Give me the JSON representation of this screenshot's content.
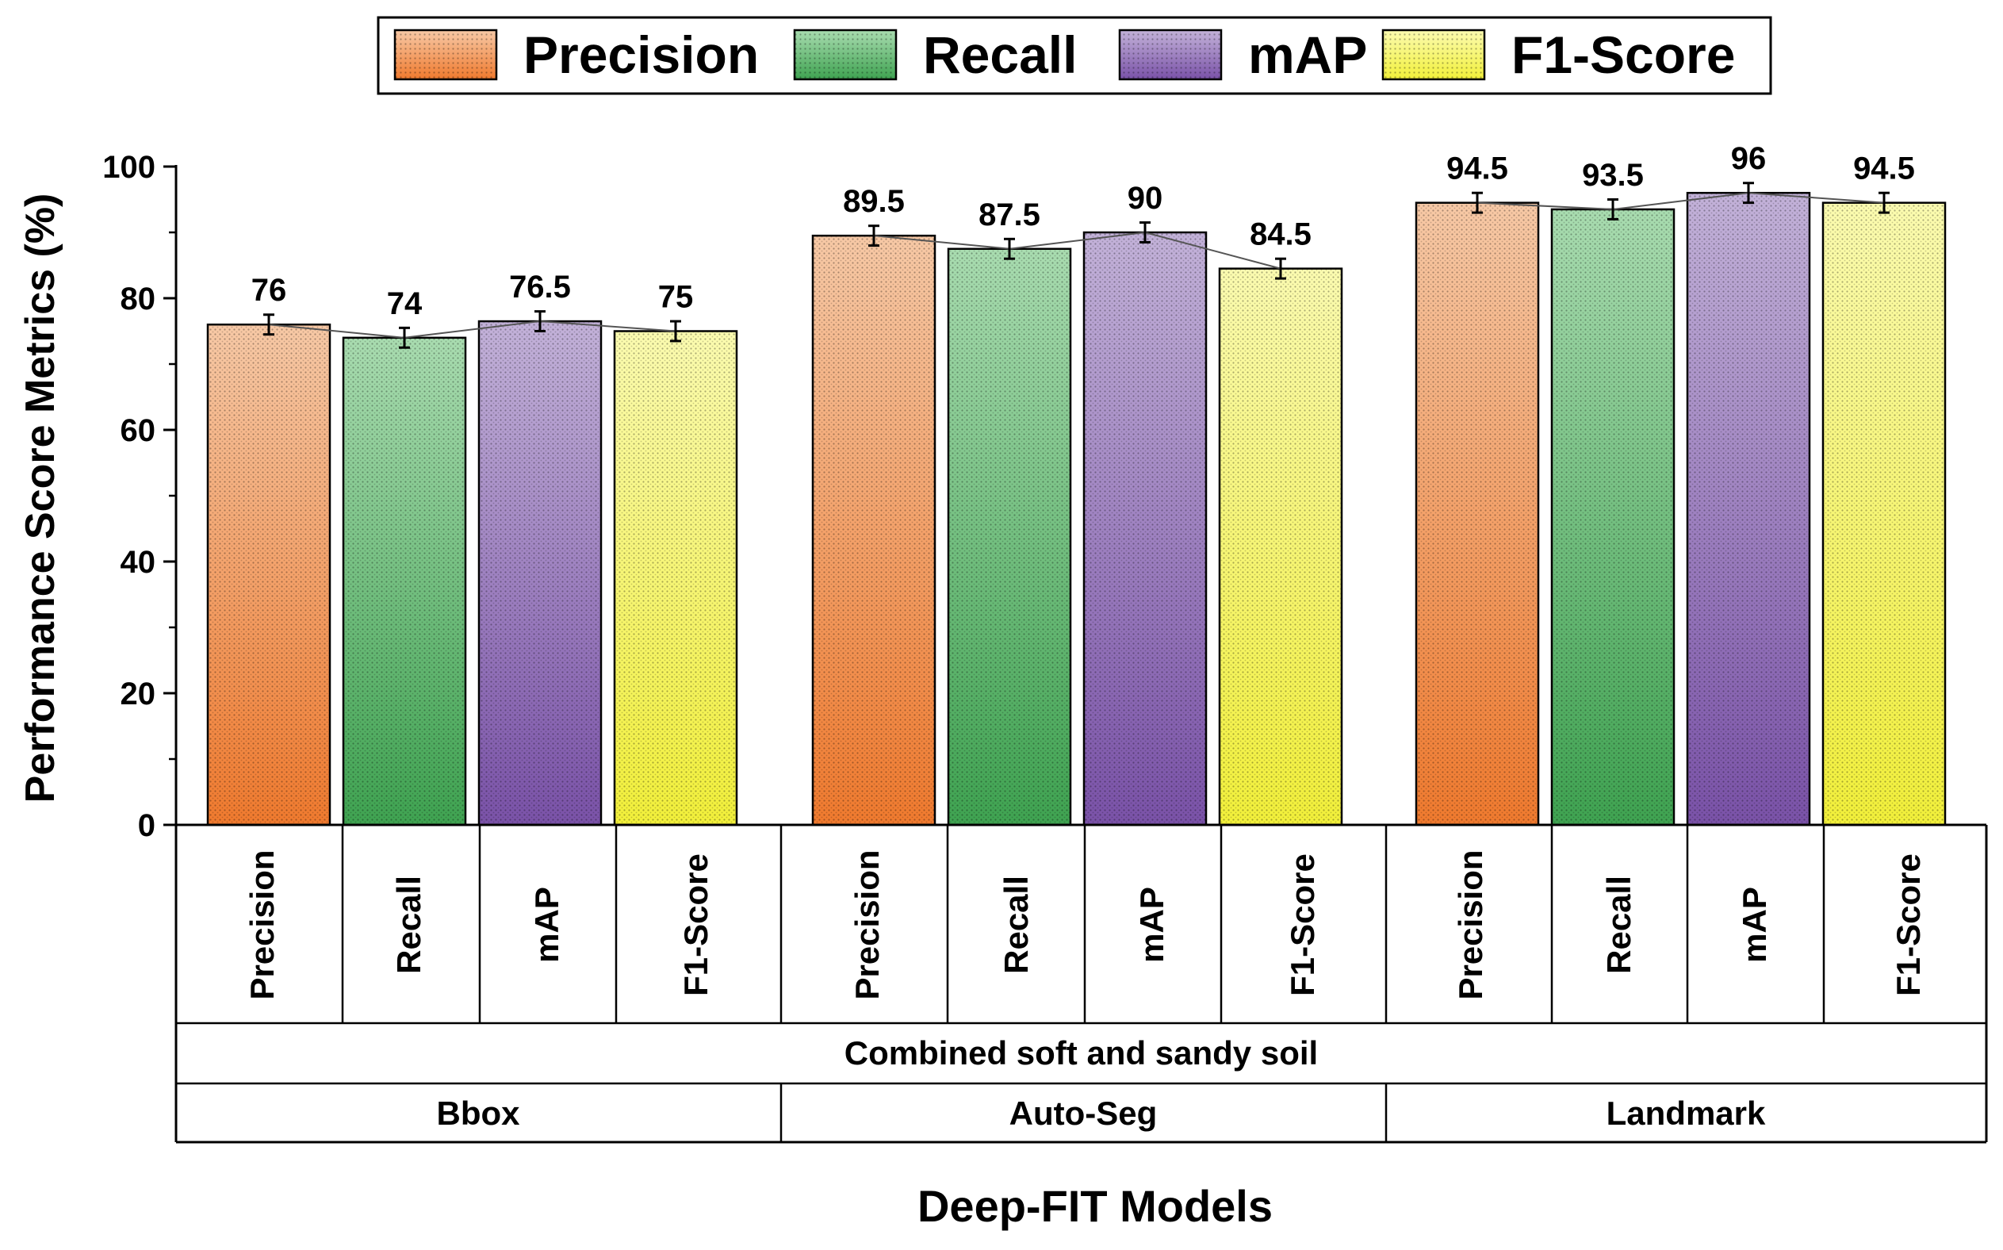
{
  "chart_data": {
    "type": "bar",
    "xlabel": "Deep-FIT Models",
    "ylabel": "Performance Score Metrics (%)",
    "ylim": [
      0,
      100
    ],
    "yticks": [
      0,
      20,
      40,
      60,
      80,
      100
    ],
    "grid": false,
    "legend_position": "top-center",
    "legend": [
      {
        "name": "Precision",
        "color": "#f07a2e"
      },
      {
        "name": "Recall",
        "color": "#3fa351"
      },
      {
        "name": "mAP",
        "color": "#7a52a8"
      },
      {
        "name": "F1-Score",
        "color": "#f2f03a"
      }
    ],
    "metric_labels": [
      "Precision",
      "Recall",
      "mAP",
      "F1-Score"
    ],
    "condition_label": "Combined soft and sandy soil",
    "groups": [
      {
        "name": "Bbox",
        "values": [
          76,
          74,
          76.5,
          75
        ],
        "labels": [
          "76",
          "74",
          "76.5",
          "75"
        ]
      },
      {
        "name": "Auto-Seg",
        "values": [
          89.5,
          87.5,
          90,
          84.5
        ],
        "labels": [
          "89.5",
          "87.5",
          "90",
          "84.5"
        ]
      },
      {
        "name": "Landmark",
        "values": [
          94.5,
          93.5,
          96,
          94.5
        ],
        "labels": [
          "94.5",
          "93.5",
          "96",
          "94.5"
        ]
      }
    ],
    "error_bar": 1.5
  }
}
